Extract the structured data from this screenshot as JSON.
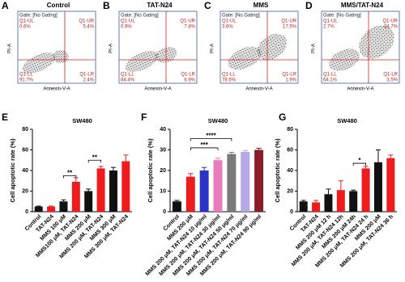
{
  "panels": [
    {
      "letter": "A",
      "title": "Control",
      "gate": "Gate: [No Gating]",
      "ylabel": "PI-A",
      "xlabel": "Annexin-V-A",
      "ul_name": "Q1-UL",
      "ul": "0.6%",
      "ur_name": "Q1-UR",
      "ur": "5.4%",
      "ll_name": "Q1-LL",
      "ll": "91.7%",
      "lr_name": "Q1-LR",
      "lr": "2.4%"
    },
    {
      "letter": "B",
      "title": "TAT-N24",
      "gate": "Gate: [No Gating]",
      "ylabel": "PI-A",
      "xlabel": "Annexin-V-A",
      "ul_name": "Q1-UL",
      "ul": "0.9%",
      "ur_name": "Q1-UR",
      "ur": "7.8%",
      "ll_name": "Q1-LL",
      "ll": "84.4%",
      "lr_name": "Q1-LR",
      "lr": "6.9%"
    },
    {
      "letter": "C",
      "title": "MMS",
      "gate": "Gate: [No Gating]",
      "ylabel": "PI-A",
      "xlabel": "Annexin-V-A",
      "ul_name": "Q1-UL",
      "ul": "3.6%",
      "ur_name": "Q1-UR",
      "ur": "17.5%",
      "ll_name": "Q1-LL",
      "ll": "78.6%",
      "lr_name": "Q1-LR",
      "lr": "1.9%"
    },
    {
      "letter": "D",
      "title": "MMS/TAT-N24",
      "gate": "Gate: [No Gating]",
      "ylabel": "PI-A",
      "xlabel": "Annexin-V-A",
      "ul_name": "Q1-UL",
      "ul": "2.7%",
      "ur_name": "Q1-UR",
      "ur": "34.7%",
      "ll_name": "Q1-LL",
      "ll": "64.1%",
      "lr_name": "Q1-LR",
      "lr": "3.5%"
    }
  ],
  "chart_data": [
    {
      "type": "bar",
      "letter": "E",
      "title": "SW480",
      "y_label": "Cell apoptotic rate (%)",
      "categories": [
        "Control",
        "TAT-N24",
        "MMS 100 μM",
        "MMS100 μM, TAT-N24",
        "MMS 200 μM",
        "MMS 200 μM, TAT-N24",
        "MMS 300 μM",
        "MMS 300 μM, TAT-N24"
      ],
      "values": [
        5,
        5,
        10,
        29,
        20,
        42,
        40,
        49
      ],
      "errors": [
        0.5,
        0.5,
        1.5,
        4,
        2,
        2,
        3,
        6
      ],
      "colors": [
        "#111111",
        "#ee1c1c",
        "#111111",
        "#ee1c1c",
        "#111111",
        "#ee1c1c",
        "#111111",
        "#ee1c1c"
      ],
      "ylim": [
        0,
        80
      ],
      "yticks": [
        0,
        20,
        40,
        60,
        80
      ],
      "annotations": [
        "**",
        "**"
      ]
    },
    {
      "type": "bar",
      "letter": "F",
      "title": "SW480",
      "y_label": "Cell apoptotic rate (%)",
      "categories": [
        "Control",
        "MMS 200 μM",
        "MMS 200 μM, TAT-N24 10 μg/ml",
        "MMS 200 μM, TAT-N24 30 μg/ml",
        "MMS 200 μM, TAT-N24 50 μg/ml",
        "MMS 200 μM, TAT-N24 70 μg/ml",
        "MMS 200 μM, TAT-N24 90 μg/ml"
      ],
      "values": [
        5,
        17,
        20,
        25,
        28,
        29,
        30
      ],
      "errors": [
        0.5,
        1.5,
        1.5,
        1,
        0.8,
        0.6,
        0.8
      ],
      "colors": [
        "#111111",
        "#ee1c1c",
        "#2a35c8",
        "#e97bbf",
        "#7a7a7a",
        "#b6a7e6",
        "#8a1c2a"
      ],
      "ylim": [
        0,
        40
      ],
      "yticks": [
        0,
        10,
        20,
        30,
        40
      ],
      "annotations": [
        "***",
        "****"
      ]
    },
    {
      "type": "bar",
      "letter": "G",
      "title": "SW480",
      "y_label": "Cell apoptotic rate (%)",
      "categories": [
        "Control",
        "TAT-N24",
        "MMS 200 μM 12 h",
        "MMS 200 μM, TAT-N24 12h",
        "MMS 200 μM 24h",
        "MMS 200 μM, TAT-N24 24 h",
        "MMS 200 μM",
        "MMS 200 μM, TAT-N24 36 h"
      ],
      "values": [
        10,
        9,
        17,
        21,
        20,
        42,
        48,
        52
      ],
      "errors": [
        1,
        2,
        5,
        9,
        1,
        2,
        12,
        3
      ],
      "colors": [
        "#111111",
        "#ee1c1c",
        "#111111",
        "#ee1c1c",
        "#111111",
        "#ee1c1c",
        "#111111",
        "#ee1c1c"
      ],
      "ylim": [
        0,
        80
      ],
      "yticks": [
        0,
        20,
        40,
        60,
        80
      ],
      "annotations": [
        "*"
      ]
    }
  ]
}
